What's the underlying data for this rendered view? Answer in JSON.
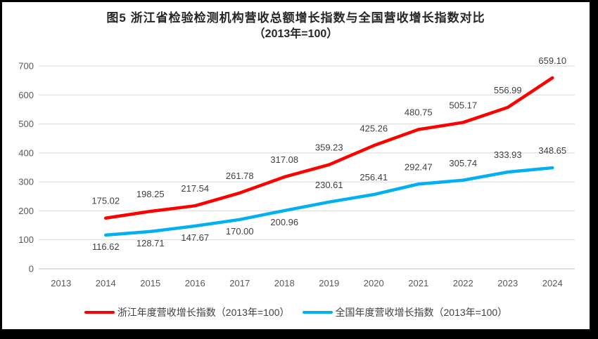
{
  "figure": {
    "title_line1": "图5  浙江省检验检测机构营收总额增长指数与全国营收增长指数对比",
    "title_line2": "（2013年=100）"
  },
  "chart_data": {
    "type": "line",
    "title": "图5  浙江省检验检测机构营收总额增长指数与全国营收增长指数对比",
    "subtitle": "（2013年=100）",
    "categories": [
      "2013",
      "2014",
      "2015",
      "2016",
      "2017",
      "2018",
      "2019",
      "2020",
      "2021",
      "2022",
      "2023",
      "2024"
    ],
    "series": [
      {
        "id": "zhejiang",
        "name": "浙江年度营收增长指数（2013年=100）",
        "color": "#ff0000",
        "values": [
          null,
          175.02,
          198.25,
          217.54,
          261.78,
          317.08,
          359.23,
          425.26,
          480.75,
          505.17,
          556.99,
          659.1
        ],
        "label_side": [
          null,
          "above",
          "above",
          "above",
          "above",
          "above",
          "above",
          "above",
          "above",
          "above",
          "above",
          "above"
        ]
      },
      {
        "id": "national",
        "name": "全国年度营收增长指数（2013年=100）",
        "color": "#00b0f0",
        "values": [
          null,
          116.62,
          128.71,
          147.67,
          170.0,
          200.96,
          230.61,
          256.41,
          292.47,
          305.74,
          333.93,
          348.65
        ],
        "label_side": [
          null,
          "below",
          "below",
          "below",
          "below",
          "below",
          "above",
          "above",
          "above",
          "above",
          "above",
          "above"
        ]
      }
    ],
    "ylim": [
      0,
      700
    ],
    "yticks": [
      0,
      100,
      200,
      300,
      400,
      500,
      600,
      700
    ],
    "grid": "horizontal",
    "legend_position": "bottom",
    "markers": false,
    "data_labels_decimals": 2
  },
  "colors": {
    "series_zhejiang": "#ff0000",
    "series_national": "#00b0f0",
    "gridline": "#d9d9d9",
    "axis_line": "#bfbfbf",
    "tick_text": "#595959",
    "data_label_text": "#404040",
    "title_text": "#262626",
    "background": "#ffffff",
    "frame_border": "#000000"
  }
}
